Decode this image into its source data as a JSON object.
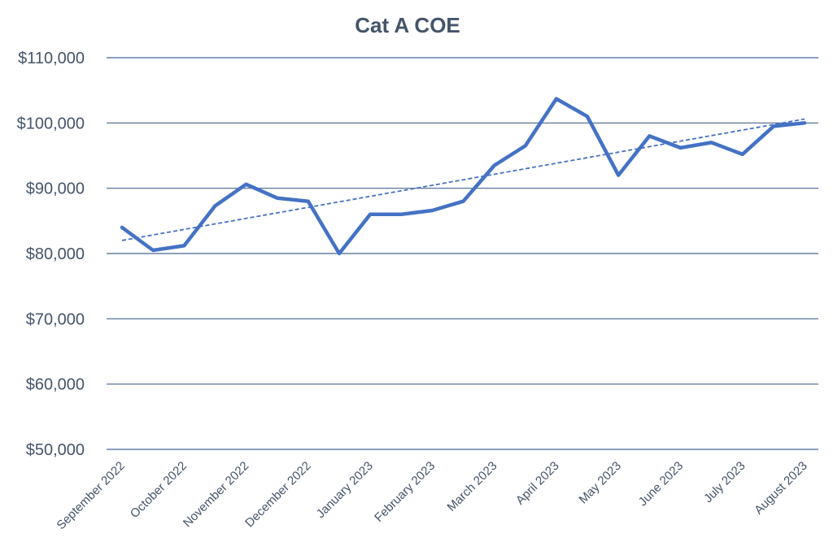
{
  "chart_data": {
    "type": "line",
    "title": "Cat A COE",
    "xlabel": "",
    "ylabel": "",
    "ylim": [
      50000,
      110000
    ],
    "yticks": [
      "$50,000",
      "$60,000",
      "$70,000",
      "$80,000",
      "$90,000",
      "$100,000",
      "$110,000"
    ],
    "ytick_values": [
      50000,
      60000,
      70000,
      80000,
      90000,
      100000,
      110000
    ],
    "x_labels": [
      "September 2022",
      "October 2022",
      "November 2022",
      "December 2022",
      "January 2023",
      "February 2023",
      "March 2023",
      "April 2023",
      "May 2023",
      "June 2023",
      "July 2023",
      "August 2023"
    ],
    "grid": true,
    "legend": "none",
    "series": [
      {
        "color": "#4472c4",
        "values": [
          84000,
          80500,
          81200,
          87300,
          90600,
          88500,
          88000,
          80000,
          86000,
          86000,
          86600,
          88000,
          93500,
          96500,
          103700,
          101000,
          92000,
          98000,
          96200,
          97000,
          95200,
          99500,
          100000
        ]
      }
    ],
    "trendline": {
      "type": "linear",
      "style": "dashed",
      "color": "#4472c4",
      "start_value": 82000,
      "end_value": 100600
    }
  }
}
